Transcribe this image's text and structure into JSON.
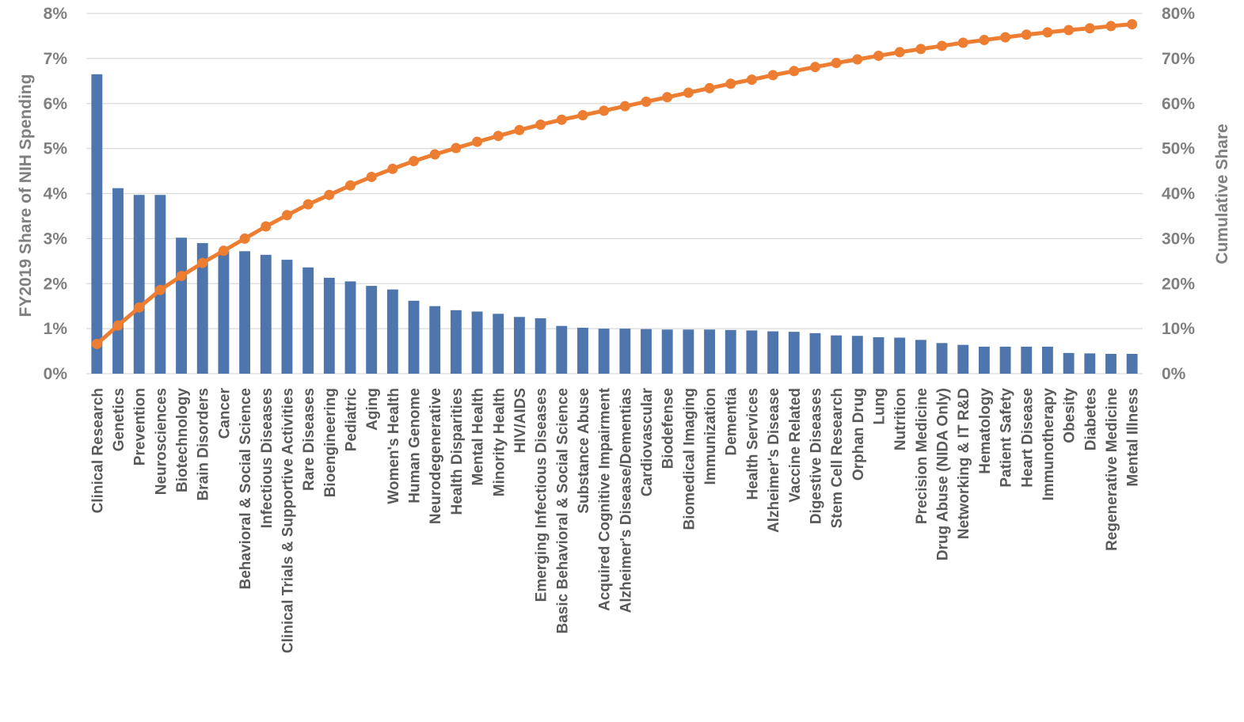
{
  "chart_data": {
    "type": "bar",
    "ylabel": "FY2019 Share of NIH Spending",
    "y2label": "Cumulative Share",
    "ylim": [
      0,
      8
    ],
    "y2lim": [
      0,
      80
    ],
    "yticks": [
      "0%",
      "1%",
      "2%",
      "3%",
      "4%",
      "5%",
      "6%",
      "7%",
      "8%"
    ],
    "y2ticks": [
      "0%",
      "10%",
      "20%",
      "30%",
      "40%",
      "50%",
      "60%",
      "70%",
      "80%"
    ],
    "grid": true,
    "colors": {
      "bar": "#4f76ac",
      "line": "#ed7d31",
      "grid": "#d9d9d9",
      "tick_text": "#7f7f7f",
      "category_text": "#595959"
    },
    "categories": [
      "Clinical Research",
      "Genetics",
      "Prevention",
      "Neurosciences",
      "Biotechnology",
      "Brain Disorders",
      "Cancer",
      "Behavioral & Social Science",
      "Infectious Diseases",
      "Clinical Trials & Supportive Activities",
      "Rare Diseases",
      "Bioengineering",
      "Pediatric",
      "Aging",
      "Women's Health",
      "Human Genome",
      "Neurodegenerative",
      "Health Disparities",
      "Mental Health",
      "Minority Health",
      "HIV/AIDS",
      "Emerging Infectious Diseases",
      "Basic Behavioral & Social Science",
      "Substance Abuse",
      "Acquired Cognitive Impairment",
      "Alzheimer's Disease/Dementias",
      "Cardiovascular",
      "Biodefense",
      "Biomedical Imaging",
      "Immunization",
      "Dementia",
      "Health Services",
      "Alzheimer's Disease",
      "Vaccine Related",
      "Digestive Diseases",
      "Stem Cell Research",
      "Orphan Drug",
      "Lung",
      "Nutrition",
      "Precision Medicine",
      "Drug Abuse (NIDA Only)",
      "Networking & IT R&D",
      "Hematology",
      "Patient Safety",
      "Heart Disease",
      "Immunotherapy",
      "Obesity",
      "Diabetes",
      "Regenerative Medicine",
      "Mental Illness"
    ],
    "series": [
      {
        "type": "bar",
        "axis": "left",
        "values": [
          6.65,
          4.12,
          3.97,
          3.97,
          3.02,
          2.9,
          2.72,
          2.72,
          2.64,
          2.53,
          2.36,
          2.13,
          2.05,
          1.95,
          1.87,
          1.62,
          1.5,
          1.41,
          1.38,
          1.33,
          1.26,
          1.23,
          1.06,
          1.02,
          1.0,
          1.0,
          0.99,
          0.98,
          0.98,
          0.98,
          0.97,
          0.96,
          0.94,
          0.93,
          0.9,
          0.85,
          0.84,
          0.81,
          0.8,
          0.75,
          0.68,
          0.64,
          0.6,
          0.6,
          0.6,
          0.6,
          0.46,
          0.45,
          0.44,
          0.44
        ]
      },
      {
        "type": "line",
        "axis": "right",
        "values": [
          6.6,
          10.7,
          14.7,
          18.6,
          21.7,
          24.6,
          27.3,
          30.0,
          32.7,
          35.2,
          37.6,
          39.7,
          41.8,
          43.7,
          45.5,
          47.2,
          48.7,
          50.1,
          51.5,
          52.8,
          54.1,
          55.3,
          56.4,
          57.4,
          58.4,
          59.4,
          60.4,
          61.4,
          62.4,
          63.4,
          64.4,
          65.3,
          66.3,
          67.2,
          68.1,
          69.0,
          69.8,
          70.6,
          71.4,
          72.1,
          72.8,
          73.5,
          74.1,
          74.7,
          75.3,
          75.8,
          76.3,
          76.7,
          77.2,
          77.6
        ]
      }
    ]
  }
}
